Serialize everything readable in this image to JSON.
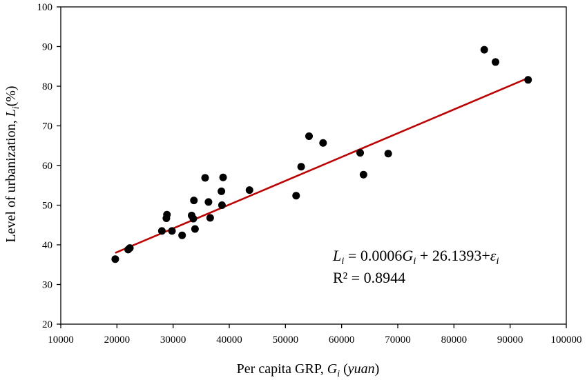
{
  "chart_data": {
    "type": "scatter",
    "xlabel": {
      "main": "Per capita GRP, ",
      "var": "G",
      "sub": "i",
      "unit_open": " (",
      "unit": "yuan",
      "unit_close": ")"
    },
    "ylabel": {
      "main": "Level of urbanization, ",
      "var": "L",
      "sub": "i",
      "unit": "(%)"
    },
    "xlim": [
      10000,
      100000
    ],
    "ylim": [
      20,
      100
    ],
    "xticks": [
      10000,
      20000,
      30000,
      40000,
      50000,
      60000,
      70000,
      80000,
      90000,
      100000
    ],
    "yticks": [
      20,
      30,
      40,
      50,
      60,
      70,
      80,
      90,
      100
    ],
    "grid": false,
    "point_color": "#000000",
    "trendline": {
      "type": "linear",
      "slope": 0.0006,
      "intercept": 26.1393,
      "x_range": [
        19700,
        93200
      ],
      "color": "#c00000"
    },
    "equation": {
      "lhs_var": "L",
      "lhs_sub": "i",
      "eq_sign": " = ",
      "coef": "0.0006",
      "rhs_var": "G",
      "rhs_sub": "i",
      "const": " + 26.1393+",
      "err_var": "ε",
      "err_sub": "i",
      "r2_label": "R² = 0.8944"
    },
    "points": [
      {
        "x": 19700,
        "y": 36.4
      },
      {
        "x": 22000,
        "y": 38.8
      },
      {
        "x": 22300,
        "y": 39.2
      },
      {
        "x": 28000,
        "y": 43.5
      },
      {
        "x": 28800,
        "y": 46.7
      },
      {
        "x": 28900,
        "y": 47.6
      },
      {
        "x": 29800,
        "y": 43.5
      },
      {
        "x": 31600,
        "y": 42.4
      },
      {
        "x": 33300,
        "y": 47.4
      },
      {
        "x": 33600,
        "y": 46.6
      },
      {
        "x": 33700,
        "y": 51.2
      },
      {
        "x": 33900,
        "y": 44.0
      },
      {
        "x": 35700,
        "y": 56.9
      },
      {
        "x": 36300,
        "y": 50.8
      },
      {
        "x": 36600,
        "y": 46.8
      },
      {
        "x": 38600,
        "y": 53.5
      },
      {
        "x": 38700,
        "y": 50.0
      },
      {
        "x": 38900,
        "y": 57.0
      },
      {
        "x": 43600,
        "y": 53.8
      },
      {
        "x": 51900,
        "y": 52.4
      },
      {
        "x": 52800,
        "y": 59.7
      },
      {
        "x": 54200,
        "y": 67.4
      },
      {
        "x": 56700,
        "y": 65.7
      },
      {
        "x": 63300,
        "y": 63.2
      },
      {
        "x": 63900,
        "y": 57.7
      },
      {
        "x": 68300,
        "y": 63.0
      },
      {
        "x": 85400,
        "y": 89.2
      },
      {
        "x": 87400,
        "y": 86.1
      },
      {
        "x": 93200,
        "y": 81.6
      }
    ]
  }
}
